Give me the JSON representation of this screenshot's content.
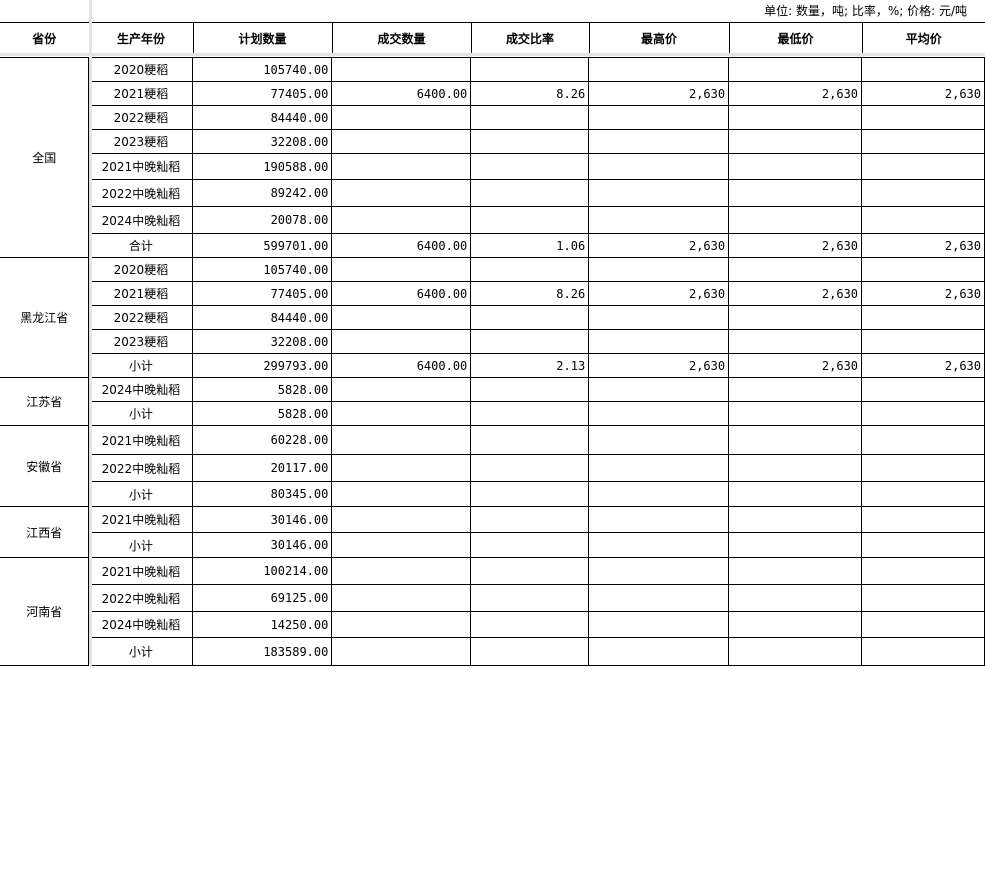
{
  "unit_note": "单位: 数量，吨; 比率，%; 价格: 元/吨",
  "headers": [
    "省份",
    "生产年份",
    "计划数量",
    "成交数量",
    "成交比率",
    "最高价",
    "最低价",
    "平均价"
  ],
  "groups": [
    {
      "province": "全国",
      "rows": [
        [
          "2020粳稻",
          "105740.00",
          "",
          "",
          "",
          "",
          ""
        ],
        [
          "2021粳稻",
          "77405.00",
          "6400.00",
          "8.26",
          "2,630",
          "2,630",
          "2,630"
        ],
        [
          "2022粳稻",
          "84440.00",
          "",
          "",
          "",
          "",
          ""
        ],
        [
          "2023粳稻",
          "32208.00",
          "",
          "",
          "",
          "",
          ""
        ],
        [
          "2021中晚籼稻",
          "190588.00",
          "",
          "",
          "",
          "",
          ""
        ],
        [
          "2022中晚籼稻",
          "89242.00",
          "",
          "",
          "",
          "",
          ""
        ],
        [
          "2024中晚籼稻",
          "20078.00",
          "",
          "",
          "",
          "",
          ""
        ],
        [
          "合计",
          "599701.00",
          "6400.00",
          "1.06",
          "2,630",
          "2,630",
          "2,630"
        ]
      ]
    },
    {
      "province": "黑龙江省",
      "rows": [
        [
          "2020粳稻",
          "105740.00",
          "",
          "",
          "",
          "",
          ""
        ],
        [
          "2021粳稻",
          "77405.00",
          "6400.00",
          "8.26",
          "2,630",
          "2,630",
          "2,630"
        ],
        [
          "2022粳稻",
          "84440.00",
          "",
          "",
          "",
          "",
          ""
        ],
        [
          "2023粳稻",
          "32208.00",
          "",
          "",
          "",
          "",
          ""
        ],
        [
          "小计",
          "299793.00",
          "6400.00",
          "2.13",
          "2,630",
          "2,630",
          "2,630"
        ]
      ]
    },
    {
      "province": "江苏省",
      "rows": [
        [
          "2024中晚籼稻",
          "5828.00",
          "",
          "",
          "",
          "",
          ""
        ],
        [
          "小计",
          "5828.00",
          "",
          "",
          "",
          "",
          ""
        ]
      ]
    },
    {
      "province": "安徽省",
      "rows": [
        [
          "2021中晚籼稻",
          "60228.00",
          "",
          "",
          "",
          "",
          ""
        ],
        [
          "2022中晚籼稻",
          "20117.00",
          "",
          "",
          "",
          "",
          ""
        ],
        [
          "小计",
          "80345.00",
          "",
          "",
          "",
          "",
          ""
        ]
      ]
    },
    {
      "province": "江西省",
      "rows": [
        [
          "2021中晚籼稻",
          "30146.00",
          "",
          "",
          "",
          "",
          ""
        ],
        [
          "小计",
          "30146.00",
          "",
          "",
          "",
          "",
          ""
        ]
      ]
    },
    {
      "province": "河南省",
      "rows": [
        [
          "2021中晚籼稻",
          "100214.00",
          "",
          "",
          "",
          "",
          ""
        ],
        [
          "2022中晚籼稻",
          "69125.00",
          "",
          "",
          "",
          "",
          ""
        ],
        [
          "2024中晚籼稻",
          "14250.00",
          "",
          "",
          "",
          "",
          ""
        ],
        [
          "小计",
          "183589.00",
          "",
          "",
          "",
          "",
          ""
        ]
      ]
    }
  ]
}
